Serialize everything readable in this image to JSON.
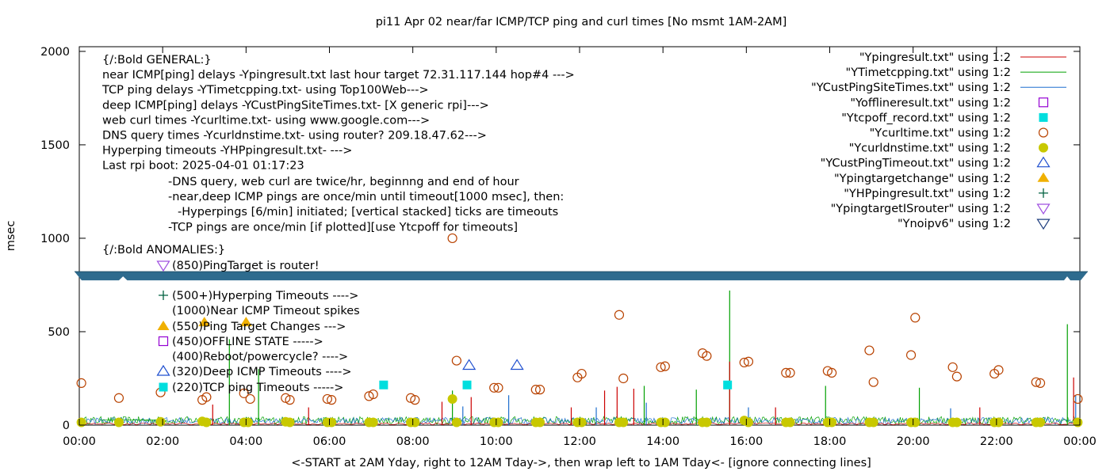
{
  "chart_data": {
    "type": "scatter",
    "title": "pi11 Apr 02  near/far ICMP/TCP ping and curl times [No msmt 1AM-2AM]",
    "xlabel": "<-START at 2AM Yday, right to 12AM Tday->, then wrap left to 1AM Tday<- [ignore connecting lines]",
    "ylabel": "msec",
    "xlim": [
      0,
      24
    ],
    "ylim": [
      0,
      2025
    ],
    "x_ticks": [
      {
        "value": 0,
        "label": "00:00"
      },
      {
        "value": 2,
        "label": "02:00"
      },
      {
        "value": 4,
        "label": "04:00"
      },
      {
        "value": 6,
        "label": "06:00"
      },
      {
        "value": 8,
        "label": "08:00"
      },
      {
        "value": 10,
        "label": "10:00"
      },
      {
        "value": 12,
        "label": "12:00"
      },
      {
        "value": 14,
        "label": "14:00"
      },
      {
        "value": 16,
        "label": "16:00"
      },
      {
        "value": 18,
        "label": "18:00"
      },
      {
        "value": 20,
        "label": "20:00"
      },
      {
        "value": 22,
        "label": "22:00"
      },
      {
        "value": 24,
        "label": "00:00"
      }
    ],
    "y_ticks": [
      {
        "value": 0,
        "label": "0"
      },
      {
        "value": 500,
        "label": "500"
      },
      {
        "value": 1000,
        "label": "1000"
      },
      {
        "value": 1500,
        "label": "1500"
      },
      {
        "value": 2000,
        "label": "2000"
      }
    ],
    "y_break": {
      "at": 800
    },
    "grid": false,
    "legend": {
      "placement": "top-right",
      "entries": [
        {
          "label": "\"Ypingresult.txt\" using 1:2",
          "style": "line",
          "color": "#cc0000"
        },
        {
          "label": "\"YTimetcpping.txt\" using 1:2",
          "style": "line",
          "color": "#00a000"
        },
        {
          "label": "\"YCustPingSiteTimes.txt\" using 1:2",
          "style": "line",
          "color": "#1f6fcf"
        },
        {
          "label": "\"Yofflineresult.txt\" using 1:2",
          "style": "open-square",
          "color": "#9400d3"
        },
        {
          "label": "\"Ytcpoff_record.txt\" using 1:2",
          "style": "filled-square",
          "color": "#00dede"
        },
        {
          "label": "\"Ycurltime.txt\" using 1:2",
          "style": "open-circle",
          "color": "#b84200"
        },
        {
          "label": "\"Ycurldnstime.txt\" using 1:2",
          "style": "filled-circle",
          "color": "#c8c800"
        },
        {
          "label": "\"YCustPingTimeout.txt\" using 1:2",
          "style": "open-triangle",
          "color": "#1f4fcf"
        },
        {
          "label": "\"Ypingtargetchange\" using 1:2",
          "style": "filled-triangle",
          "color": "#f0b000"
        },
        {
          "label": "\"YHPpingresult.txt\" using 1:2",
          "style": "plus",
          "color": "#006040"
        },
        {
          "label": "\"YpingtargetISrouter\" using 1:2",
          "style": "open-down-triangle",
          "color": "#a050e0"
        },
        {
          "label": "\"Ynoipv6\" using 1:2",
          "style": "open-down-triangle",
          "color": "#1f3f7f"
        }
      ]
    },
    "annotations_top": [
      "{/:Bold GENERAL:}",
      "near ICMP[ping] delays -Ypingresult.txt last hour target 72.31.117.144 hop#4 --->",
      "TCP ping delays -YTimetcpping.txt- using Top100Web--->",
      "deep ICMP[ping] delays -YCustPingSiteTimes.txt- [X generic rpi]--->",
      "web curl times -Ycurltime.txt- using www.google.com--->",
      "DNS query times -Ycurldnstime.txt- using router? 209.18.47.62--->",
      "Hyperping timeouts -YHPpingresult.txt- --->",
      "Last rpi boot: 2025-04-01 01:17:23"
    ],
    "annotations_notes": [
      "-DNS query, web curl are twice/hr, beginnng and end of hour",
      "-near,deep ICMP pings are once/min until timeout[1000 msec], then:",
      "-Hyperpings [6/min] initiated; [vertical stacked] ticks are timeouts",
      "-TCP pings are once/min [if plotted][use Ytcpoff for timeouts]"
    ],
    "annotations_anomalies_title": "{/:Bold ANOMALIES:}",
    "annotations_anomalies": [
      {
        "symbol": "open-down-triangle",
        "color": "#a050e0",
        "text": "(850)PingTarget is router!"
      },
      {
        "symbol": "plus",
        "color": "#006040",
        "text": "(500+)Hyperping Timeouts ---->"
      },
      {
        "symbol": "none",
        "color": "",
        "text": "(1000)Near ICMP Timeout spikes"
      },
      {
        "symbol": "filled-triangle",
        "color": "#f0b000",
        "text": "(550)Ping Target Changes --->"
      },
      {
        "symbol": "open-square",
        "color": "#9400d3",
        "text": "(450)OFFLINE STATE ----->"
      },
      {
        "symbol": "none",
        "color": "",
        "text": "(400)Reboot/powercycle? ---->"
      },
      {
        "symbol": "open-triangle",
        "color": "#1f4fcf",
        "text": "(320)Deep ICMP Timeouts ---->"
      },
      {
        "symbol": "filled-square",
        "color": "#00dede",
        "text": "(220)TCP ping Timeouts ----->"
      }
    ],
    "series": {
      "curltime": [
        [
          0.05,
          225
        ],
        [
          0.95,
          145
        ],
        [
          1.95,
          175
        ],
        [
          2.95,
          135
        ],
        [
          3.05,
          150
        ],
        [
          3.95,
          170
        ],
        [
          4.1,
          140
        ],
        [
          4.95,
          145
        ],
        [
          5.05,
          135
        ],
        [
          5.95,
          140
        ],
        [
          6.05,
          135
        ],
        [
          6.95,
          155
        ],
        [
          7.05,
          165
        ],
        [
          7.95,
          145
        ],
        [
          8.05,
          135
        ],
        [
          8.95,
          1000
        ],
        [
          9.05,
          345
        ],
        [
          9.95,
          200
        ],
        [
          10.05,
          200
        ],
        [
          10.95,
          190
        ],
        [
          11.05,
          190
        ],
        [
          11.95,
          255
        ],
        [
          12.05,
          275
        ],
        [
          12.95,
          590
        ],
        [
          13.05,
          250
        ],
        [
          13.95,
          310
        ],
        [
          14.05,
          315
        ],
        [
          14.95,
          385
        ],
        [
          15.05,
          370
        ],
        [
          15.95,
          335
        ],
        [
          16.05,
          340
        ],
        [
          16.95,
          280
        ],
        [
          17.05,
          280
        ],
        [
          17.95,
          290
        ],
        [
          18.05,
          280
        ],
        [
          18.95,
          400
        ],
        [
          19.05,
          230
        ],
        [
          19.95,
          375
        ],
        [
          20.05,
          575
        ],
        [
          20.95,
          310
        ],
        [
          21.05,
          260
        ],
        [
          21.95,
          275
        ],
        [
          22.05,
          295
        ],
        [
          22.95,
          230
        ],
        [
          23.05,
          225
        ],
        [
          23.95,
          140
        ]
      ],
      "curldnstime": [
        [
          0.05,
          15
        ],
        [
          0.95,
          15
        ],
        [
          1.95,
          18
        ],
        [
          2.95,
          20
        ],
        [
          3.05,
          15
        ],
        [
          3.95,
          15
        ],
        [
          4.05,
          15
        ],
        [
          4.95,
          18
        ],
        [
          5.05,
          15
        ],
        [
          5.95,
          15
        ],
        [
          6.05,
          15
        ],
        [
          6.95,
          15
        ],
        [
          7.05,
          15
        ],
        [
          7.95,
          15
        ],
        [
          8.05,
          15
        ],
        [
          8.95,
          140
        ],
        [
          9.05,
          15
        ],
        [
          9.95,
          15
        ],
        [
          10.05,
          15
        ],
        [
          10.95,
          15
        ],
        [
          11.05,
          15
        ],
        [
          11.95,
          15
        ],
        [
          12.05,
          15
        ],
        [
          12.95,
          15
        ],
        [
          13.05,
          15
        ],
        [
          13.95,
          15
        ],
        [
          14.05,
          15
        ],
        [
          14.95,
          15
        ],
        [
          15.05,
          15
        ],
        [
          15.95,
          25
        ],
        [
          16.05,
          15
        ],
        [
          16.95,
          15
        ],
        [
          17.05,
          15
        ],
        [
          17.95,
          15
        ],
        [
          18.05,
          15
        ],
        [
          18.95,
          15
        ],
        [
          19.05,
          15
        ],
        [
          19.95,
          15
        ],
        [
          20.05,
          15
        ],
        [
          20.95,
          15
        ],
        [
          21.05,
          15
        ],
        [
          21.95,
          15
        ],
        [
          22.05,
          15
        ],
        [
          22.95,
          15
        ],
        [
          23.05,
          15
        ],
        [
          23.95,
          15
        ]
      ],
      "tcpoff": [
        [
          7.3,
          215
        ],
        [
          9.3,
          215
        ],
        [
          15.55,
          215
        ]
      ],
      "pingtargetchange": [
        [
          3.0,
          550
        ],
        [
          4.0,
          550
        ]
      ],
      "custpingtimeout": [
        [
          9.35,
          320
        ],
        [
          10.5,
          320
        ]
      ],
      "spikes_tcp": [
        [
          3.6,
          460
        ],
        [
          4.3,
          300
        ],
        [
          8.95,
          185
        ],
        [
          13.55,
          210
        ],
        [
          14.8,
          190
        ],
        [
          15.6,
          720
        ],
        [
          17.9,
          210
        ],
        [
          20.15,
          200
        ],
        [
          23.7,
          540
        ]
      ],
      "spikes_near": [
        [
          3.2,
          110
        ],
        [
          5.5,
          95
        ],
        [
          8.7,
          125
        ],
        [
          9.4,
          150
        ],
        [
          11.8,
          95
        ],
        [
          12.6,
          185
        ],
        [
          12.9,
          205
        ],
        [
          13.3,
          195
        ],
        [
          15.6,
          340
        ],
        [
          16.7,
          95
        ],
        [
          21.6,
          95
        ],
        [
          23.85,
          255
        ]
      ],
      "spikes_deep": [
        [
          9.2,
          100
        ],
        [
          10.3,
          160
        ],
        [
          12.4,
          95
        ],
        [
          13.6,
          120
        ],
        [
          16.05,
          95
        ],
        [
          20.9,
          90
        ],
        [
          23.9,
          160
        ]
      ]
    }
  }
}
